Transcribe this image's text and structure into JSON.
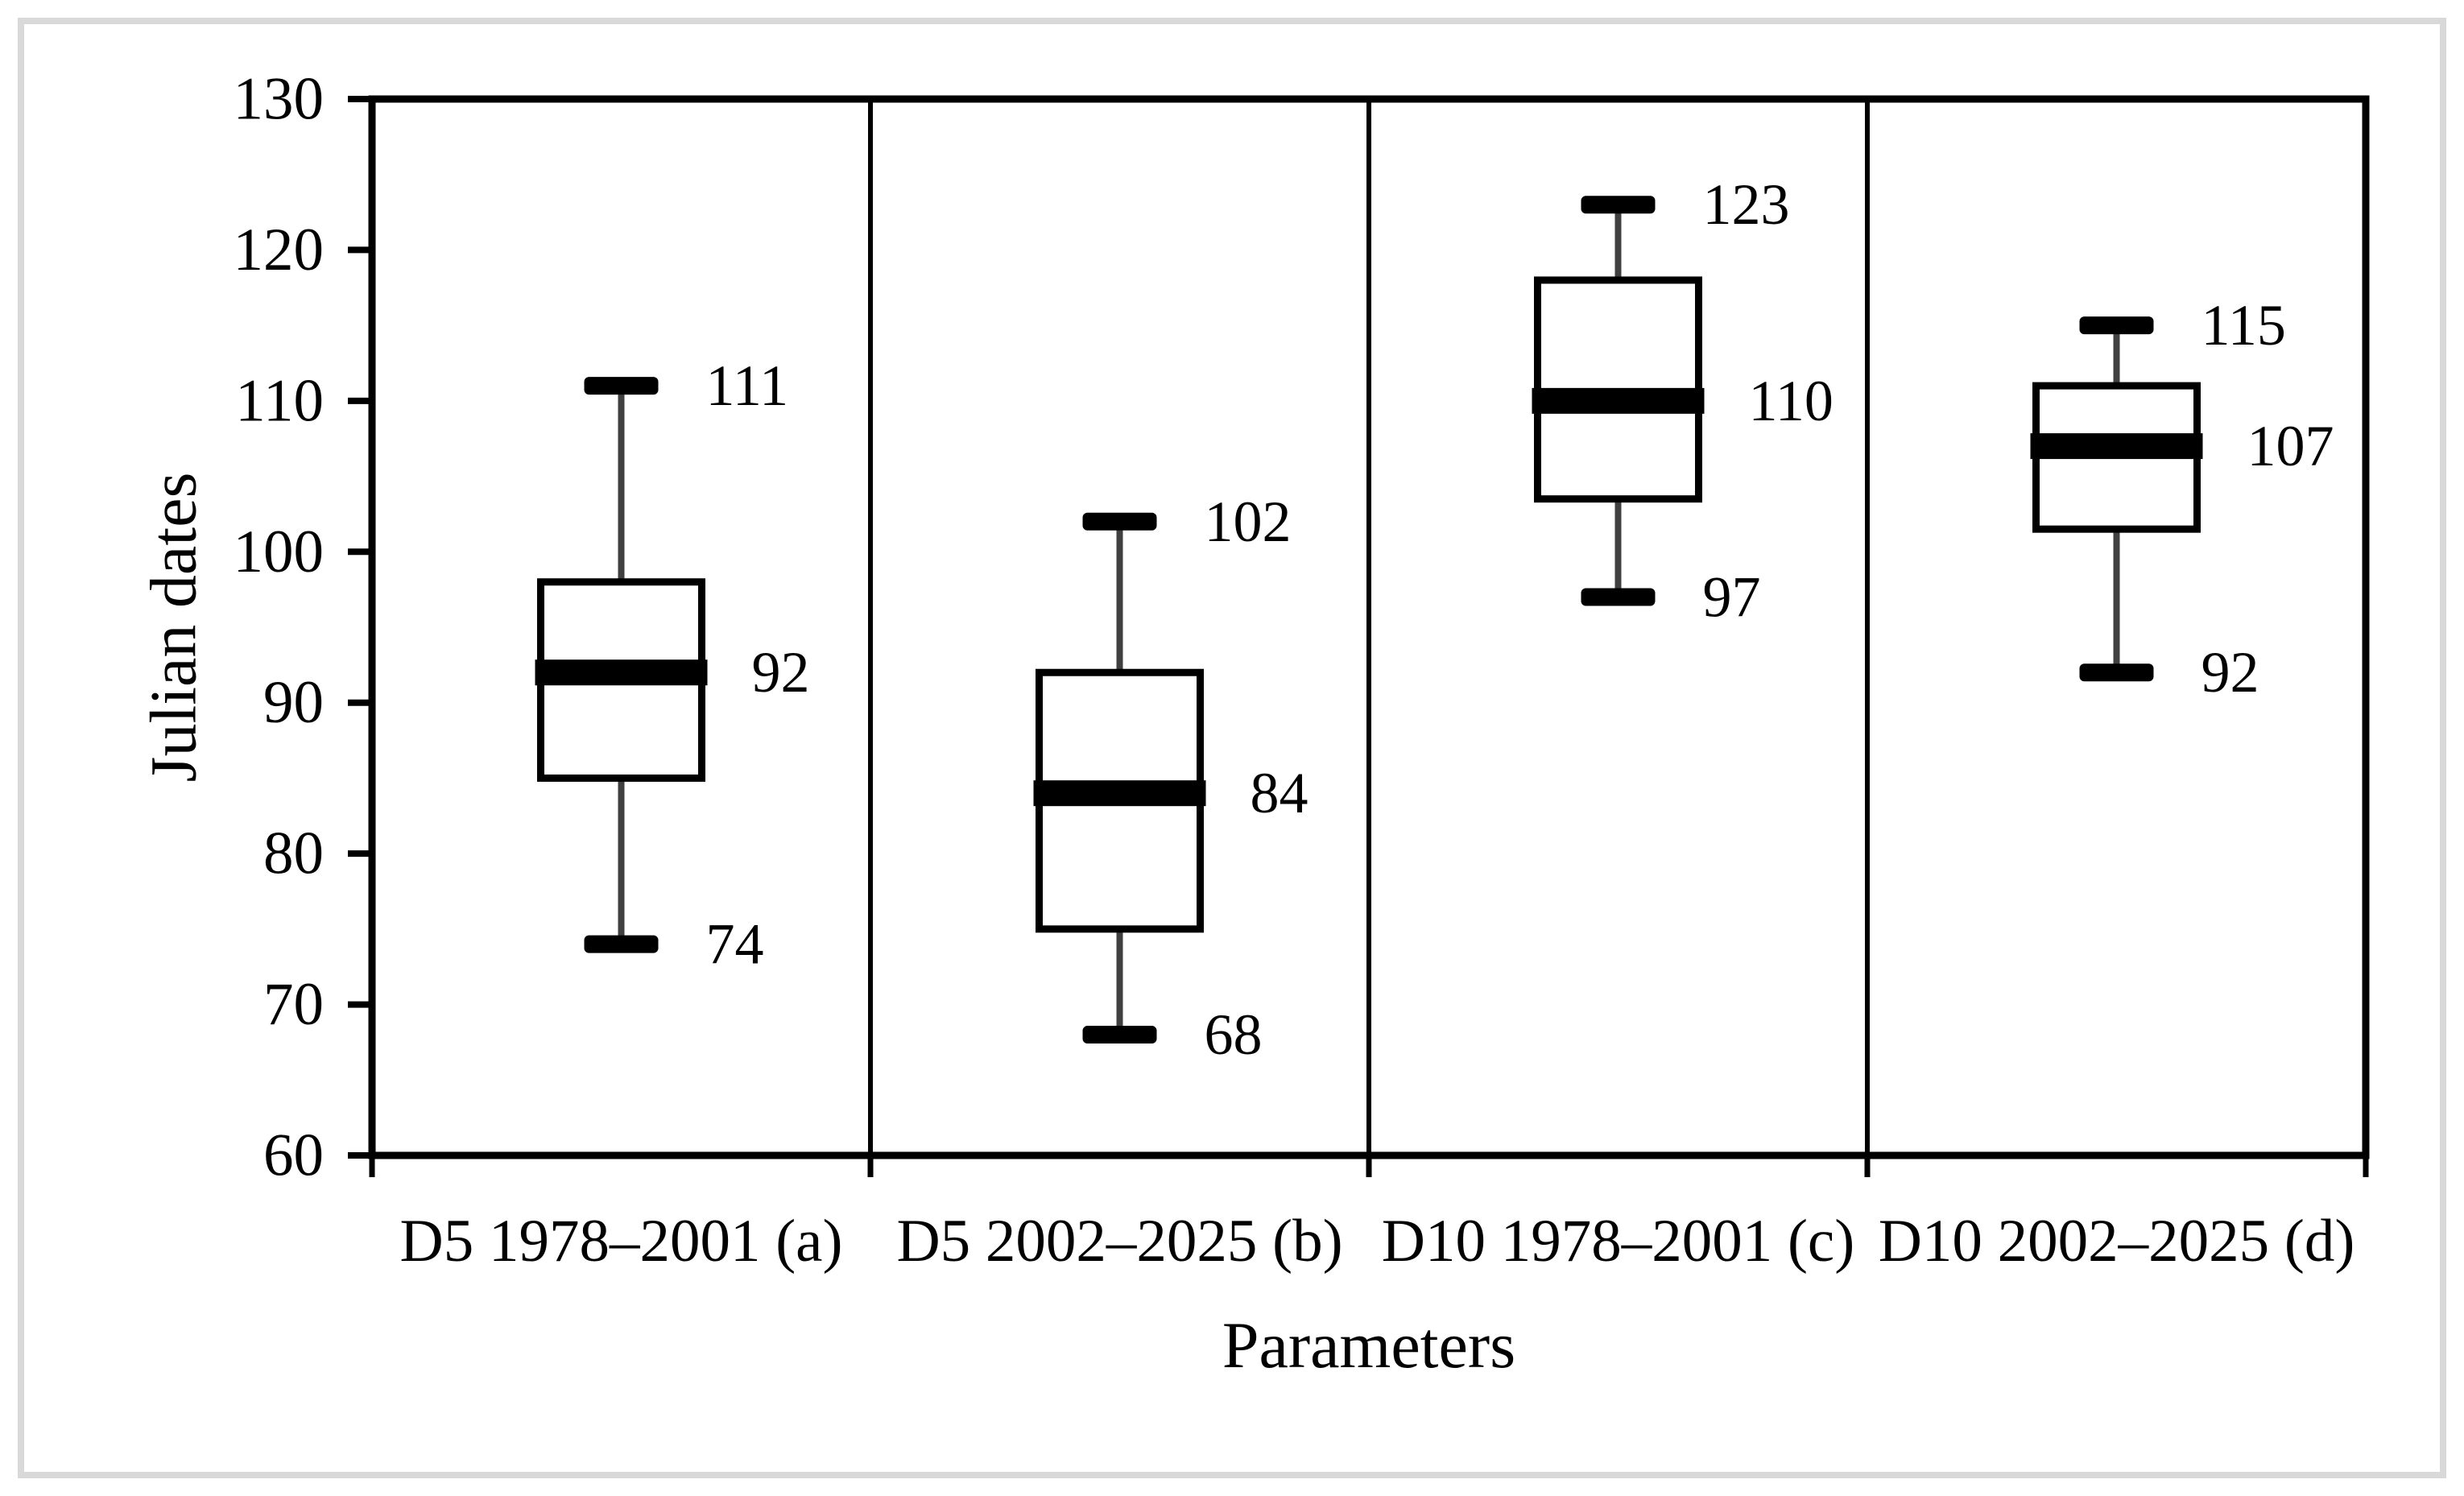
{
  "figure": {
    "frame_color": "#d9d9d9",
    "background_color": "#ffffff",
    "box_fill_color": "#ffffff",
    "box_border_color": "#000000",
    "whisker_line_color": "#404040",
    "whisker_cap_color": "#000000",
    "median_color": "#000000",
    "text_color": "#000000"
  },
  "chart_data": {
    "type": "boxplot",
    "title": "",
    "xlabel": "Parameters",
    "ylabel": "Julian dates",
    "ylim": [
      60,
      130
    ],
    "y_ticks": [
      130,
      120,
      110,
      100,
      90,
      80,
      70,
      60
    ],
    "grid": false,
    "legend": false,
    "panel_separators": true,
    "categories": [
      "D5 1978–2001 (a)",
      "D5 2002–2025 (b)",
      "D10 1978–2001 (c)",
      "D10 2002–2025 (d)"
    ],
    "series": [
      {
        "category": "D5 1978–2001 (a)",
        "whisker_high": 111,
        "q3": 98,
        "median": 92,
        "q1": 85,
        "whisker_low": 74,
        "labels": {
          "high": "111",
          "median": "92",
          "low": "74"
        }
      },
      {
        "category": "D5 2002–2025 (b)",
        "whisker_high": 102,
        "q3": 92,
        "median": 84,
        "q1": 75,
        "whisker_low": 68,
        "labels": {
          "high": "102",
          "median": "84",
          "low": "68"
        }
      },
      {
        "category": "D10 1978–2001 (c)",
        "whisker_high": 123,
        "q3": 118,
        "median": 110,
        "q1": 103.5,
        "whisker_low": 97,
        "labels": {
          "high": "123",
          "median": "110",
          "low": "97"
        }
      },
      {
        "category": "D10 2002–2025 (d)",
        "whisker_high": 115,
        "q3": 111,
        "median": 107,
        "q1": 101.5,
        "whisker_low": 92,
        "labels": {
          "high": "115",
          "median": "107",
          "low": "92"
        }
      }
    ]
  }
}
